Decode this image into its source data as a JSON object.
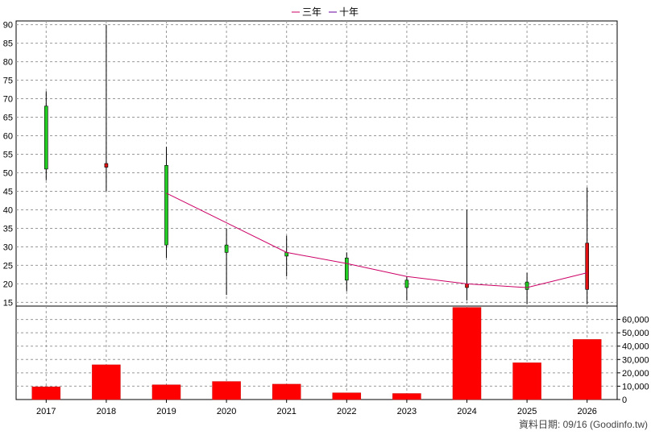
{
  "legend": {
    "items": [
      {
        "label": "三年",
        "color": "#cc0066"
      },
      {
        "label": "十年",
        "color": "#660099"
      }
    ]
  },
  "footer": {
    "source_label": "資料日期: 09/16 (Goodinfo.tw)"
  },
  "chart_data": [
    {
      "type": "candlestick",
      "categories": [
        "2017",
        "2018",
        "2019",
        "2020",
        "2021",
        "2022",
        "2023",
        "2024",
        "2025",
        "2026"
      ],
      "ohlc": [
        {
          "open": 51,
          "high": 72,
          "low": 48,
          "close": 68,
          "up": true
        },
        {
          "open": 52.5,
          "high": 90,
          "low": 45,
          "close": 51.5,
          "up": false
        },
        {
          "open": 30.5,
          "high": 57,
          "low": 27,
          "close": 52,
          "up": true
        },
        {
          "open": 28.5,
          "high": 35,
          "low": 17,
          "close": 30.5,
          "up": true
        },
        {
          "open": 27.5,
          "high": 33,
          "low": 22,
          "close": 28.5,
          "up": true
        },
        {
          "open": 21,
          "high": 28.5,
          "low": 18,
          "close": 27,
          "up": true
        },
        {
          "open": 19,
          "high": 22,
          "low": 15.5,
          "close": 21,
          "up": true
        },
        {
          "open": 20,
          "high": 40,
          "low": 15.5,
          "close": 19,
          "up": false
        },
        {
          "open": 18.5,
          "high": 23,
          "low": 14.5,
          "close": 20.5,
          "up": true
        },
        {
          "open": 31,
          "high": 46,
          "low": 14.5,
          "close": 18.5,
          "up": false
        }
      ],
      "lines": [
        {
          "name": "三年",
          "color": "#cc0066",
          "values": [
            null,
            null,
            44.5,
            36.5,
            28.5,
            25.5,
            22,
            20,
            19,
            23
          ]
        }
      ],
      "up_color": "#22cc22",
      "down_color": "#dd1111",
      "ylim": [
        14,
        91
      ],
      "yticks": [
        15,
        20,
        25,
        30,
        35,
        40,
        45,
        50,
        55,
        60,
        65,
        70,
        75,
        80,
        85,
        90
      ],
      "grid": true
    },
    {
      "type": "bar",
      "categories": [
        "2017",
        "2018",
        "2019",
        "2020",
        "2021",
        "2022",
        "2023",
        "2024",
        "2025",
        "2026"
      ],
      "values": [
        9500,
        26000,
        11000,
        13500,
        11500,
        5000,
        4500,
        69000,
        27500,
        45000
      ],
      "color": "#ff0000",
      "ylim": [
        0,
        70000
      ],
      "yticks": [
        0,
        10000,
        20000,
        30000,
        40000,
        50000,
        60000
      ],
      "ytick_labels": [
        "0",
        "10,000",
        "20,000",
        "30,000",
        "40,000",
        "50,000",
        "60,000"
      ],
      "grid": true
    }
  ]
}
